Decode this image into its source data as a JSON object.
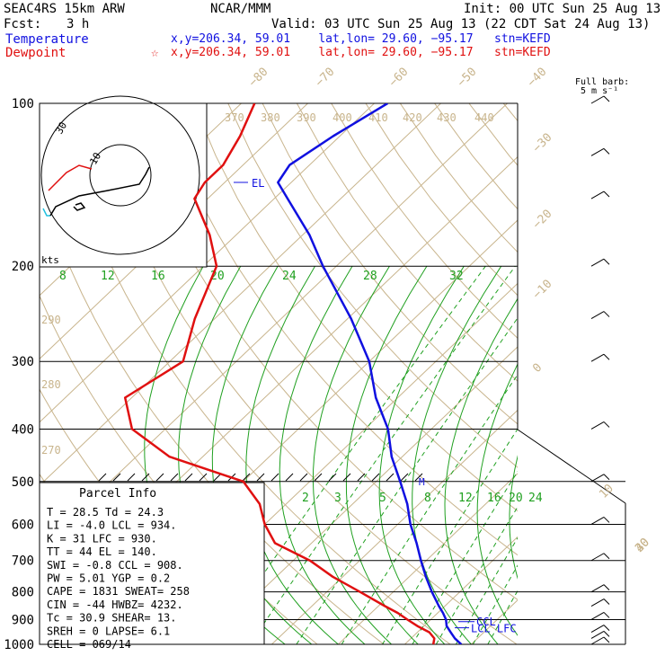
{
  "header": {
    "model": "SEAC4RS 15km ARW",
    "org": "NCAR/MMM",
    "init": "Init: 00 UTC Sun 25 Aug 13",
    "fcst_label": "Fcst:",
    "fcst_value": "3 h",
    "valid": "Valid: 03 UTC Sun 25 Aug 13 (22 CDT Sat 24 Aug 13)",
    "temp_label": "Temperature",
    "temp_info": "x,y=206.34, 59.01    lat,lon= 29.60, −95.17   stn=KEFD",
    "dew_label": "Dewpoint",
    "dew_star": "☆",
    "dew_info": "x,y=206.34, 59.01    lat,lon= 29.60, −95.17   stn=KEFD"
  },
  "barb_legend": {
    "line1": "Full barb:",
    "line2": "5 m s⁻¹"
  },
  "hodograph": {
    "units": "kts",
    "ring_label_inner": "10",
    "ring_label_outer": "30"
  },
  "parcel": {
    "title": "Parcel Info",
    "rows": [
      "T  =   28.5  Td =  24.3",
      "LI =   -4.0  LCL =  934.",
      "K  =     31  LFC =  930.",
      "TT =     44  EL  =  140.",
      "SWI =  -0.8  CCL =  908.",
      "PW  =  5.01  YGP =   0.2",
      "CAPE = 1831  SWEAT=  258",
      "CIN  =  -44  HWBZ= 4232.",
      "Tc  =  30.9  SHEAR=  13.",
      "SREH =    0  LAPSE=  6.1",
      "CELL = 069/14"
    ]
  },
  "level_labels": {
    "el": "EL",
    "ccl": "CCL",
    "lcl_lfc": "LCL LFC",
    "m": "M"
  },
  "chart_data": {
    "type": "line",
    "subtype": "skew-T log-p",
    "y_axis": {
      "label": "",
      "scale": "log",
      "range_hPa": [
        1000,
        100
      ],
      "ticks": [
        100,
        200,
        300,
        400,
        500,
        600,
        700,
        800,
        900,
        1000
      ]
    },
    "isotherm_labels": [
      "−80",
      "−70",
      "−60",
      "−50",
      "−40",
      "−30",
      "−20",
      "−10",
      "0",
      "10",
      "20",
      "30",
      "40"
    ],
    "theta_labels_top": [
      "370",
      "380",
      "390",
      "400",
      "410",
      "420",
      "430",
      "440"
    ],
    "theta_labels_side": [
      "290",
      "280",
      "270"
    ],
    "mixing_ratio_labels_top": [
      "8",
      "12",
      "16",
      "20",
      "24",
      "28",
      "32"
    ],
    "mixing_ratio_labels_low": [
      "2",
      "3",
      "5",
      "8",
      "12",
      "16",
      "20",
      "24"
    ],
    "series": [
      {
        "name": "Temperature",
        "color": "#1010e0",
        "p": [
          1000,
          975,
          950,
          925,
          900,
          875,
          850,
          800,
          750,
          700,
          650,
          600,
          550,
          500,
          450,
          400,
          350,
          300,
          250,
          200,
          175,
          150,
          140,
          130,
          115,
          100
        ],
        "t": [
          28.5,
          26.6,
          25.0,
          23.4,
          22.3,
          20.8,
          19.1,
          15.8,
          12.5,
          9.2,
          5.8,
          1.9,
          -1.8,
          -6.4,
          -11.6,
          -16.5,
          -23.3,
          -30.0,
          -39.5,
          -52.0,
          -59.0,
          -68.0,
          -72.0,
          -73.0,
          -71.0,
          -68.0
        ]
      },
      {
        "name": "Dewpoint",
        "color": "#e01010",
        "p": [
          1000,
          975,
          950,
          925,
          900,
          875,
          850,
          800,
          750,
          700,
          650,
          600,
          550,
          500,
          450,
          400,
          350,
          300,
          250,
          200,
          175,
          150,
          140,
          130,
          115,
          100
        ],
        "t": [
          24.3,
          23.5,
          21.8,
          19.0,
          16.5,
          14.0,
          11.0,
          5.0,
          -1.5,
          -7.5,
          -15.5,
          -20.0,
          -24.0,
          -30.0,
          -45.0,
          -55.0,
          -61.0,
          -58.0,
          -63.0,
          -68.0,
          -74.0,
          -82.0,
          -83.0,
          -83.0,
          -85.0,
          -88.0
        ]
      }
    ],
    "wind_barbs": [
      {
        "p": 1000,
        "spd_kt": 15
      },
      {
        "p": 975,
        "spd_kt": 15
      },
      {
        "p": 950,
        "spd_kt": 14
      },
      {
        "p": 900,
        "spd_kt": 12
      },
      {
        "p": 850,
        "spd_kt": 10
      },
      {
        "p": 800,
        "spd_kt": 8
      },
      {
        "p": 700,
        "spd_kt": 10
      },
      {
        "p": 600,
        "spd_kt": 10
      },
      {
        "p": 500,
        "spd_kt": 12
      },
      {
        "p": 400,
        "spd_kt": 10
      },
      {
        "p": 300,
        "spd_kt": 10
      },
      {
        "p": 250,
        "spd_kt": 14
      },
      {
        "p": 200,
        "spd_kt": 16
      },
      {
        "p": 150,
        "spd_kt": 14
      },
      {
        "p": 125,
        "spd_kt": 14
      },
      {
        "p": 100,
        "spd_kt": 12
      }
    ]
  }
}
